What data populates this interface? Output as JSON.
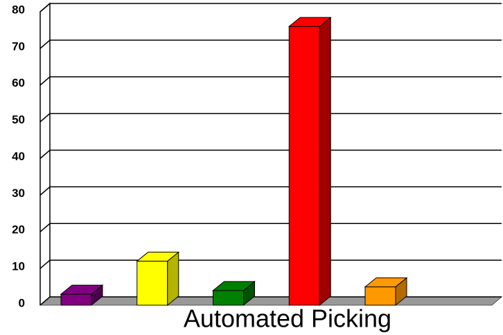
{
  "chart_data": {
    "type": "bar3d",
    "x_label": "Automated Picking",
    "categories": [
      null,
      null,
      null,
      null,
      null
    ],
    "values": [
      3,
      12,
      4,
      76,
      5
    ],
    "colors": [
      "#800080",
      "#ffff00",
      "#008000",
      "#ff0000",
      "#ff9900"
    ],
    "side_colors": [
      "#4d004d",
      "#b3b300",
      "#005200",
      "#a00000",
      "#b36b00"
    ],
    "ylim": [
      0,
      80
    ],
    "yticks": [
      0,
      10,
      20,
      30,
      40,
      50,
      60,
      70,
      80
    ],
    "grid": true
  }
}
